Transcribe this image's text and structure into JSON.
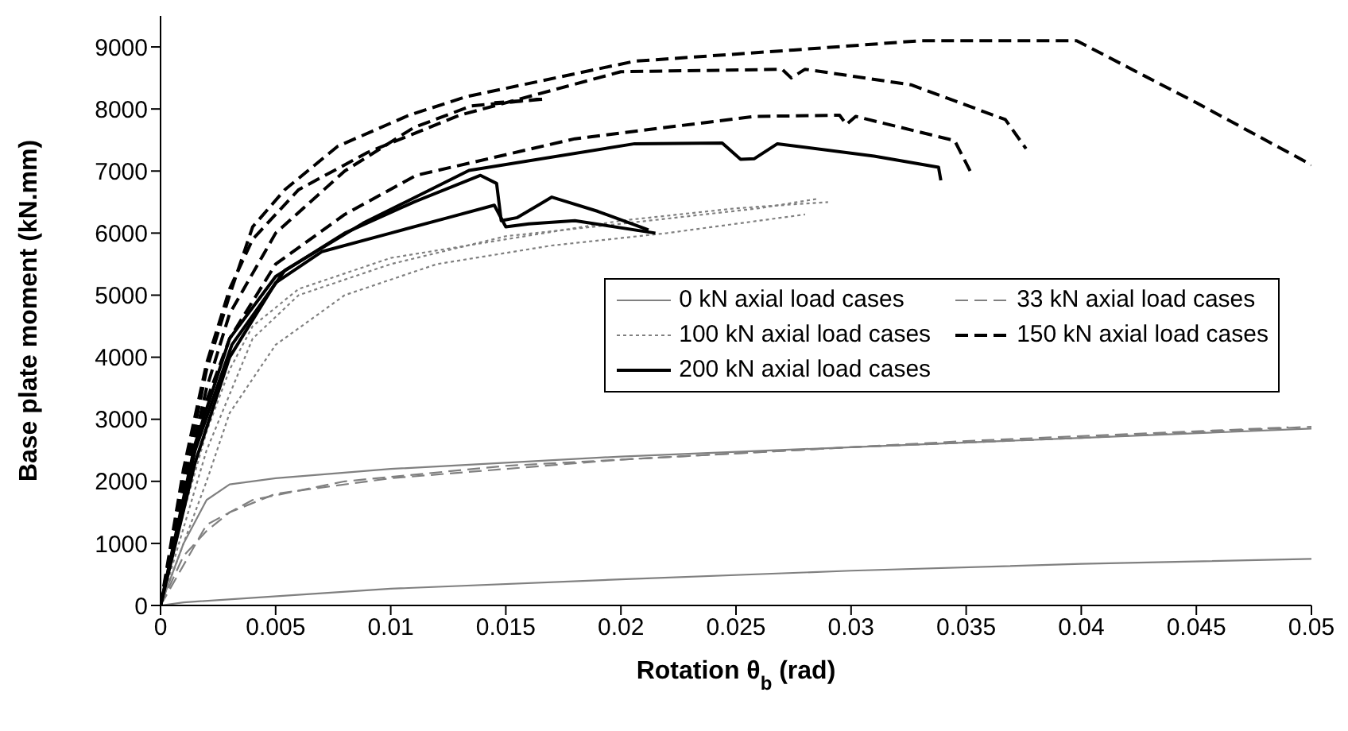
{
  "chart_data": {
    "type": "line",
    "xlabel": "Rotation θ$_{b}$ (rad)",
    "ylabel": "Base plate moment (kN.mm)",
    "xlim": [
      0,
      0.05
    ],
    "xticks": [
      0,
      0.005,
      0.01,
      0.015,
      0.02,
      0.025,
      0.03,
      0.035,
      0.04,
      0.045,
      0.05
    ],
    "ylim": [
      0,
      9500
    ],
    "yticks": [
      0,
      1000,
      2000,
      3000,
      4000,
      5000,
      6000,
      7000,
      8000,
      9000
    ],
    "grid": false,
    "legend": "right",
    "marker": "none",
    "series": [
      {
        "name": "0 kN axial load cases",
        "color": "#808080",
        "line_style": "solid",
        "x": [
          0,
          0.001,
          0.002,
          0.003,
          0.005,
          0.01,
          0.02,
          0.03,
          0.04,
          0.05
        ],
        "values": [
          0,
          1000,
          1700,
          1950,
          2050,
          2200,
          2400,
          2550,
          2700,
          2850
        ]
      },
      {
        "color": "#808080",
        "line_style": "solid",
        "x": [
          0,
          0.001,
          0.01,
          0.02,
          0.03,
          0.04,
          0.05
        ],
        "values": [
          0,
          50,
          270,
          420,
          560,
          670,
          750
        ]
      },
      {
        "name": "33 kN axial load cases",
        "color": "#808080",
        "line_style": "dashed",
        "x": [
          0,
          0.001,
          0.002,
          0.003,
          0.005,
          0.01,
          0.015,
          0.02,
          0.03,
          0.04,
          0.05
        ],
        "values": [
          0,
          800,
          1200,
          1500,
          1800,
          2050,
          2200,
          2350,
          2550,
          2700,
          2880
        ]
      },
      {
        "color": "#808080",
        "line_style": "dashed",
        "x": [
          0,
          0.002,
          0.004,
          0.008,
          0.015,
          0.025,
          0.035,
          0.049
        ],
        "values": [
          0,
          1300,
          1700,
          2000,
          2250,
          2450,
          2650,
          2870
        ]
      },
      {
        "name": "100 kN axial load cases",
        "color": "#808080",
        "line_style": "dotted",
        "x": [
          0,
          0.001,
          0.002,
          0.003,
          0.004,
          0.006,
          0.01,
          0.015,
          0.02,
          0.025,
          0.029
        ],
        "values": [
          0,
          1500,
          2800,
          3800,
          4500,
          5100,
          5600,
          5900,
          6200,
          6400,
          6500
        ]
      },
      {
        "color": "#808080",
        "line_style": "dotted",
        "x": [
          0,
          0.001,
          0.002,
          0.003,
          0.005,
          0.008,
          0.012,
          0.017,
          0.022,
          0.028
        ],
        "values": [
          0,
          1000,
          2000,
          3100,
          4200,
          5000,
          5500,
          5800,
          6000,
          6300
        ]
      },
      {
        "color": "#808080",
        "line_style": "dotted",
        "x": [
          0,
          0.002,
          0.004,
          0.006,
          0.01,
          0.015,
          0.02,
          0.026,
          0.0285
        ],
        "values": [
          0,
          2500,
          4300,
          5000,
          5500,
          5950,
          6150,
          6400,
          6550
        ]
      },
      {
        "name": "150 kN axial load cases",
        "color": "#000000",
        "line_style": "dashed",
        "x": [
          0,
          0.001,
          0.002,
          0.003,
          0.004,
          0.0054,
          0.0077,
          0.0108,
          0.0133,
          0.0206,
          0.0275,
          0.033,
          0.0398,
          0.045,
          0.05
        ],
        "values": [
          0,
          2000,
          3800,
          5000,
          6100,
          6700,
          7400,
          7900,
          8200,
          8770,
          8950,
          9100,
          9100,
          8100,
          7100
        ]
      },
      {
        "color": "#000000",
        "line_style": "dashed",
        "x": [
          0,
          0.001,
          0.002,
          0.003,
          0.004,
          0.006,
          0.009,
          0.013,
          0.02,
          0.027,
          0.0274,
          0.028,
          0.0326,
          0.0367,
          0.0376
        ],
        "values": [
          0,
          2200,
          3900,
          5100,
          5900,
          6700,
          7300,
          7900,
          8600,
          8640,
          8500,
          8640,
          8390,
          7830,
          7360
        ]
      },
      {
        "color": "#000000",
        "line_style": "dashed",
        "x": [
          0,
          0.001,
          0.002,
          0.003,
          0.005,
          0.008,
          0.0111,
          0.018,
          0.0258,
          0.0295,
          0.0298,
          0.0302,
          0.0345,
          0.0352
        ],
        "values": [
          0,
          1800,
          3300,
          4300,
          5500,
          6300,
          6930,
          7520,
          7880,
          7900,
          7750,
          7880,
          7490,
          6980
        ]
      },
      {
        "color": "#000000",
        "line_style": "dashed",
        "x": [
          0,
          0.001,
          0.002,
          0.003,
          0.005,
          0.008,
          0.011,
          0.0135,
          0.0155,
          0.0167,
          0.0145
        ],
        "values": [
          0,
          1900,
          3500,
          4700,
          6000,
          7000,
          7700,
          8050,
          8120,
          8160,
          8100
        ]
      },
      {
        "name": "200 kN axial load cases",
        "color": "#000000",
        "line_style": "solid",
        "x": [
          0,
          0.0015,
          0.0031,
          0.0054,
          0.0088,
          0.0134,
          0.0206,
          0.0244,
          0.0252,
          0.0258,
          0.0268,
          0.031,
          0.0338,
          0.0339
        ],
        "values": [
          0,
          2500,
          4200,
          5400,
          6160,
          7010,
          7440,
          7450,
          7190,
          7200,
          7440,
          7240,
          7060,
          6850
        ]
      },
      {
        "color": "#000000",
        "line_style": "solid",
        "x": [
          0,
          0.0015,
          0.003,
          0.005,
          0.008,
          0.011,
          0.0139,
          0.0146,
          0.0148,
          0.0155,
          0.017,
          0.019,
          0.0212
        ],
        "values": [
          0,
          2600,
          4300,
          5300,
          6000,
          6500,
          6930,
          6800,
          6200,
          6250,
          6580,
          6350,
          6050
        ]
      },
      {
        "color": "#000000",
        "line_style": "solid",
        "x": [
          0,
          0.0015,
          0.003,
          0.005,
          0.007,
          0.01,
          0.0125,
          0.0145,
          0.015,
          0.016,
          0.018,
          0.0215
        ],
        "values": [
          0,
          2300,
          4000,
          5200,
          5700,
          6000,
          6250,
          6450,
          6100,
          6150,
          6200,
          6000
        ]
      }
    ]
  }
}
